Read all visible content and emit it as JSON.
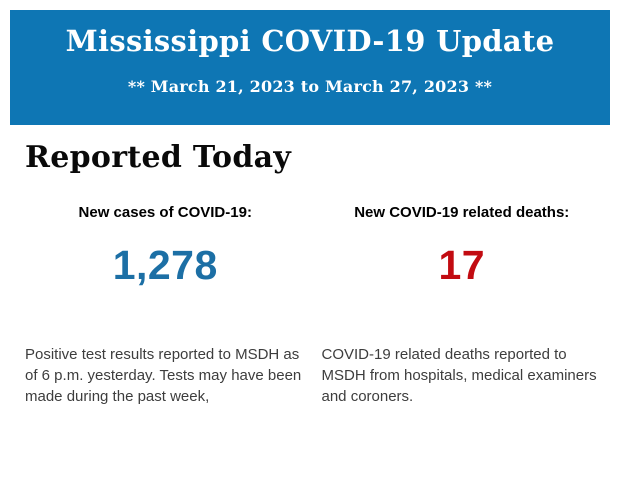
{
  "banner": {
    "title": "Mississippi COVID-19 Update",
    "subtitle": "** March 21, 2023 to March 27, 2023 **",
    "background_color": "#0E76B4",
    "text_color": "#FFFFFF"
  },
  "section": {
    "heading": "Reported Today"
  },
  "stats": [
    {
      "label": "New cases of COVID-19:",
      "value": "1,278",
      "value_color": "#1C6FA5",
      "description": "Positive test results reported to MSDH as of 6 p.m. yesterday. Tests may have been made during the past week,"
    },
    {
      "label": "New COVID-19 related deaths:",
      "value": "17",
      "value_color": "#C20B11",
      "description": "COVID-19 related deaths reported to MSDH from hospitals, medical examiners and coroners."
    }
  ]
}
